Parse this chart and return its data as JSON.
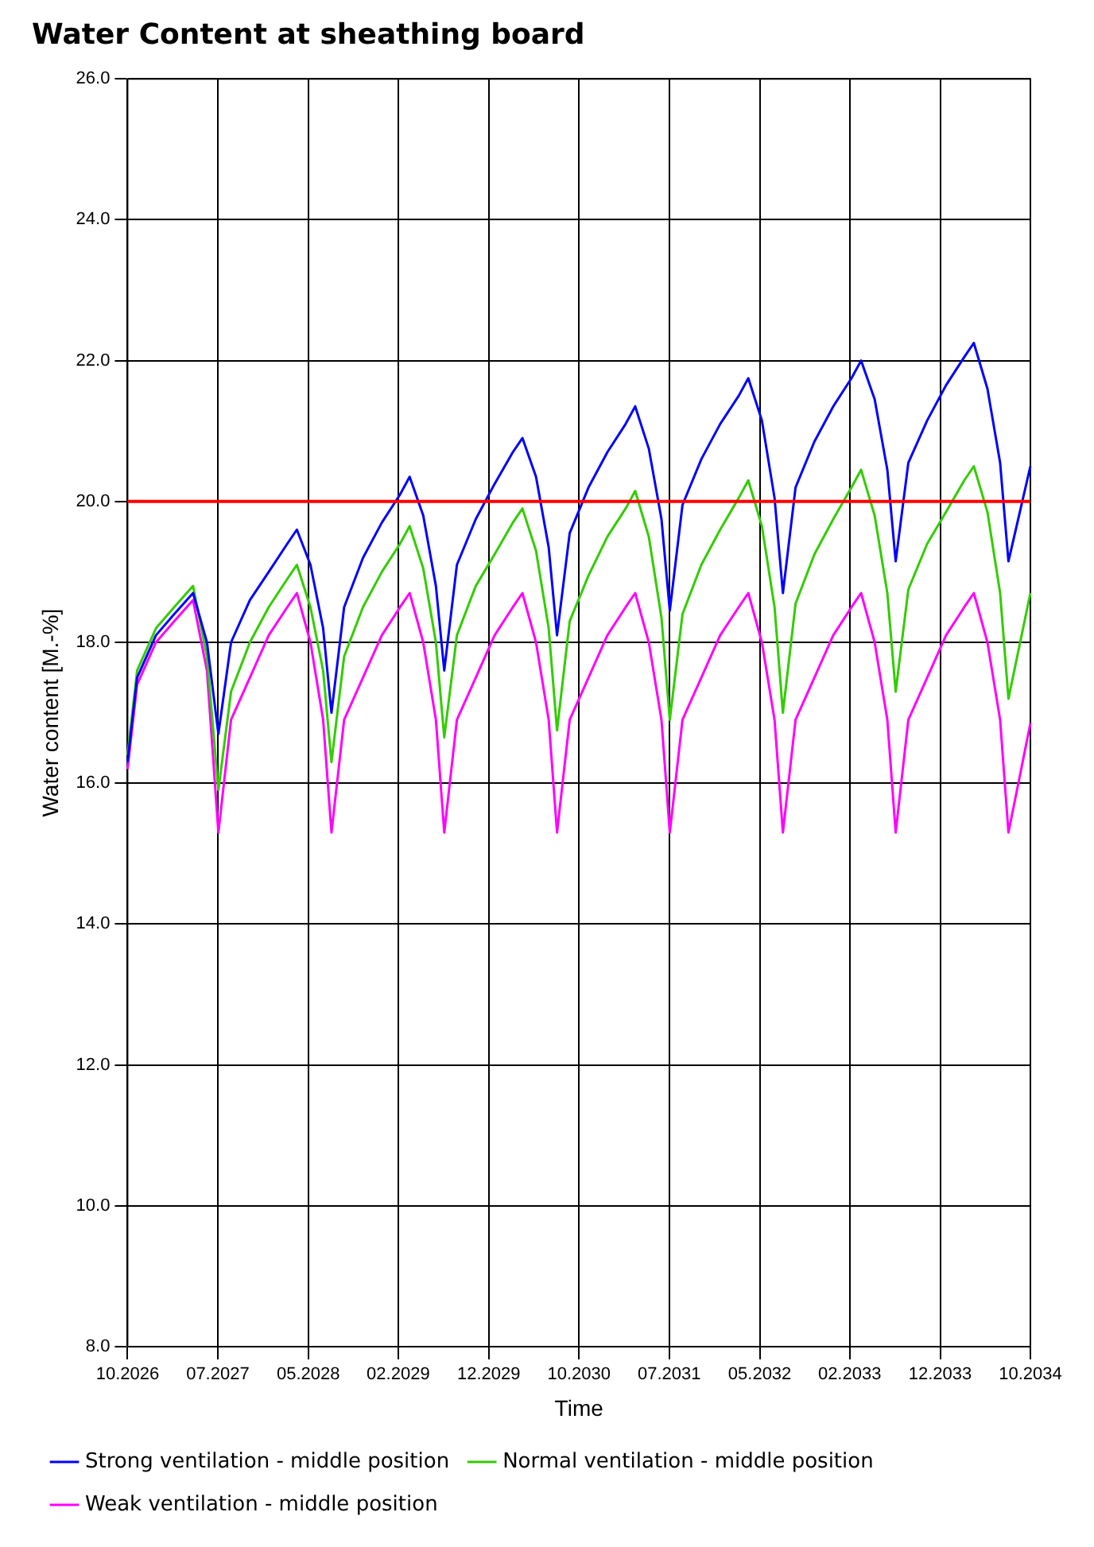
{
  "chart_data": {
    "type": "line",
    "title": "Water Content at sheathing board",
    "xlabel": "Time",
    "ylabel": "Water content [M.-%]",
    "x": [
      "2026-10-01",
      "2026-11-01",
      "2027-01-01",
      "2027-03-01",
      "2027-05-01",
      "2027-06-15",
      "2027-07-22",
      "2027-09-01",
      "2027-11-01",
      "2028-01-01",
      "2028-03-01",
      "2028-04-01",
      "2028-05-15",
      "2028-06-25",
      "2028-07-22",
      "2028-09-01",
      "2028-11-01",
      "2029-01-01",
      "2029-03-01",
      "2029-04-01",
      "2029-05-15",
      "2029-06-25",
      "2029-07-22",
      "2029-09-01",
      "2029-11-01",
      "2030-01-01",
      "2030-03-01",
      "2030-04-01",
      "2030-05-15",
      "2030-06-25",
      "2030-07-22",
      "2030-09-01",
      "2030-11-01",
      "2031-01-01",
      "2031-03-01",
      "2031-04-01",
      "2031-05-15",
      "2031-06-25",
      "2031-07-22",
      "2031-09-01",
      "2031-11-01",
      "2032-01-01",
      "2032-03-01",
      "2032-04-01",
      "2032-05-15",
      "2032-06-25",
      "2032-07-22",
      "2032-09-01",
      "2032-11-01",
      "2033-01-01",
      "2033-03-01",
      "2033-04-01",
      "2033-05-15",
      "2033-06-25",
      "2033-07-22",
      "2033-09-01",
      "2033-11-01",
      "2034-01-01",
      "2034-03-01",
      "2034-04-01",
      "2034-05-15",
      "2034-06-25",
      "2034-07-22",
      "2034-10-01"
    ],
    "series": [
      {
        "name": "Strong ventilation - middle position",
        "color": "#0000ff",
        "values": [
          16.3,
          17.5,
          18.1,
          18.4,
          18.7,
          18.0,
          16.7,
          18.0,
          18.6,
          19.0,
          19.4,
          19.6,
          19.1,
          18.2,
          17.0,
          18.5,
          19.2,
          19.7,
          20.1,
          20.35,
          19.8,
          18.8,
          17.6,
          19.1,
          19.75,
          20.25,
          20.7,
          20.9,
          20.35,
          19.35,
          18.1,
          19.55,
          20.2,
          20.7,
          21.1,
          21.35,
          20.75,
          19.75,
          18.45,
          19.95,
          20.6,
          21.1,
          21.5,
          21.75,
          21.15,
          20.05,
          18.7,
          20.2,
          20.85,
          21.35,
          21.75,
          22.0,
          21.45,
          20.45,
          19.15,
          20.55,
          21.15,
          21.65,
          22.05,
          22.25,
          21.6,
          20.55,
          19.15,
          20.5
        ]
      },
      {
        "name": "Normal ventilation - middle position",
        "color": "#33cc00",
        "values": [
          16.4,
          17.6,
          18.2,
          18.5,
          18.8,
          17.8,
          15.9,
          17.3,
          18.0,
          18.5,
          18.9,
          19.1,
          18.5,
          17.6,
          16.3,
          17.8,
          18.5,
          19.0,
          19.4,
          19.65,
          19.05,
          18.0,
          16.65,
          18.1,
          18.8,
          19.25,
          19.7,
          19.9,
          19.3,
          18.2,
          16.75,
          18.3,
          18.95,
          19.5,
          19.9,
          20.15,
          19.5,
          18.35,
          16.9,
          18.4,
          19.1,
          19.6,
          20.05,
          20.3,
          19.65,
          18.5,
          17.0,
          18.55,
          19.25,
          19.75,
          20.2,
          20.45,
          19.8,
          18.7,
          17.3,
          18.75,
          19.4,
          19.85,
          20.3,
          20.5,
          19.85,
          18.7,
          17.2,
          18.7
        ]
      },
      {
        "name": "Weak ventilation - middle position",
        "color": "#ff00ff",
        "values": [
          16.2,
          17.4,
          18.0,
          18.3,
          18.6,
          17.6,
          15.3,
          16.9,
          17.5,
          18.1,
          18.5,
          18.7,
          18.0,
          16.9,
          15.3,
          16.9,
          17.5,
          18.1,
          18.5,
          18.7,
          18.0,
          16.9,
          15.3,
          16.9,
          17.5,
          18.1,
          18.5,
          18.7,
          18.0,
          16.9,
          15.3,
          16.9,
          17.5,
          18.1,
          18.5,
          18.7,
          18.0,
          16.9,
          15.3,
          16.9,
          17.5,
          18.1,
          18.5,
          18.7,
          18.0,
          16.9,
          15.3,
          16.9,
          17.5,
          18.1,
          18.5,
          18.7,
          18.0,
          16.9,
          15.3,
          16.9,
          17.5,
          18.1,
          18.5,
          18.7,
          18.0,
          16.9,
          15.3,
          16.85
        ]
      }
    ],
    "xlim": [
      "2026-10-01",
      "2034-10-01"
    ],
    "xticks": [
      {
        "value": "2026-10-01",
        "label": "10.2026"
      },
      {
        "value": "2027-07-20",
        "label": "07.2027"
      },
      {
        "value": "2028-05-08",
        "label": "05.2028"
      },
      {
        "value": "2029-02-23",
        "label": "02.2029"
      },
      {
        "value": "2029-12-13",
        "label": "12.2029"
      },
      {
        "value": "2030-10-01",
        "label": "10.2030"
      },
      {
        "value": "2031-07-20",
        "label": "07.2031"
      },
      {
        "value": "2032-05-08",
        "label": "05.2032"
      },
      {
        "value": "2033-02-23",
        "label": "02.2033"
      },
      {
        "value": "2033-12-13",
        "label": "12.2033"
      },
      {
        "value": "2034-10-01",
        "label": "10.2034"
      }
    ],
    "ylim": [
      8,
      26
    ],
    "yticks": [
      {
        "value": 8,
        "label": "8.0"
      },
      {
        "value": 10,
        "label": "10.0"
      },
      {
        "value": 12,
        "label": "12.0"
      },
      {
        "value": 14,
        "label": "14.0"
      },
      {
        "value": 16,
        "label": "16.0"
      },
      {
        "value": 18,
        "label": "18.0"
      },
      {
        "value": 20,
        "label": "20.0"
      },
      {
        "value": 22,
        "label": "22.0"
      },
      {
        "value": 24,
        "label": "24.0"
      },
      {
        "value": 26,
        "label": "26.0"
      }
    ],
    "ref_lines": [
      {
        "axis": "y",
        "value": 20,
        "color": "#ff0000"
      }
    ],
    "grid": true,
    "legend": "bottom",
    "marker": "none",
    "line_style": "solid"
  }
}
